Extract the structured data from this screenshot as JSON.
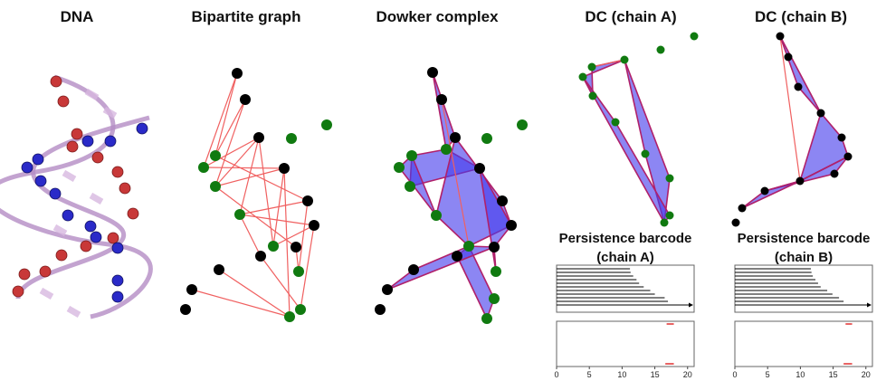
{
  "panels": [
    {
      "title": "DNA"
    },
    {
      "title": "Bipartite graph"
    },
    {
      "title": "Dowker complex"
    },
    {
      "title": "DC (chain A)"
    },
    {
      "title": "DC (chain B)"
    }
  ],
  "barcodes": [
    {
      "title_lines": [
        "Persistence barcode",
        "(chain A)"
      ],
      "xlim": [
        0,
        21
      ],
      "xticks": [
        0,
        5,
        10,
        15,
        20
      ],
      "h0": [
        {
          "start": 0,
          "end": 11.2
        },
        {
          "start": 0,
          "end": 11.3
        },
        {
          "start": 0,
          "end": 11.7
        },
        {
          "start": 0,
          "end": 12.2
        },
        {
          "start": 0,
          "end": 12.6
        },
        {
          "start": 0,
          "end": 13.3
        },
        {
          "start": 0,
          "end": 14.3
        },
        {
          "start": 0,
          "end": 15
        },
        {
          "start": 0,
          "end": 16.5
        },
        {
          "start": 0,
          "end": 17
        },
        {
          "start": 0,
          "end": null
        }
      ],
      "h1": [
        {
          "start": 16.8,
          "end": 17.9
        },
        {
          "start": 16.6,
          "end": 17.9
        }
      ]
    },
    {
      "title_lines": [
        "Persistence barcode",
        "(chain B)"
      ],
      "xlim": [
        0,
        21
      ],
      "xticks": [
        0,
        5,
        10,
        15,
        20
      ],
      "h0": [
        {
          "start": 0,
          "end": 11.6
        },
        {
          "start": 0,
          "end": 11.7
        },
        {
          "start": 0,
          "end": 11.9
        },
        {
          "start": 0,
          "end": 12.3
        },
        {
          "start": 0,
          "end": 12.7
        },
        {
          "start": 0,
          "end": 13.1
        },
        {
          "start": 0,
          "end": 14.1
        },
        {
          "start": 0,
          "end": 14.9
        },
        {
          "start": 0,
          "end": 15.9
        },
        {
          "start": 0,
          "end": 16.6
        },
        {
          "start": 0,
          "end": null
        }
      ],
      "h1": [
        {
          "start": 16.9,
          "end": 17.9
        },
        {
          "start": 16.6,
          "end": 17.9
        }
      ]
    }
  ]
}
